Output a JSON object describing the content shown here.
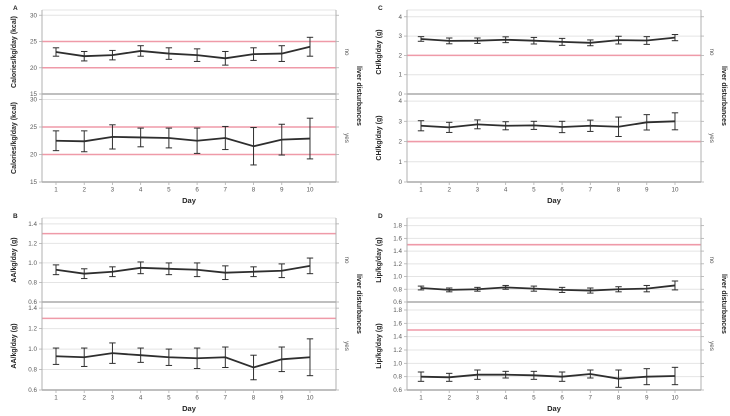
{
  "style": {
    "background": "#ffffff",
    "series_color": "#2e2e2e",
    "reference_line_color": "#ef9aa8",
    "gridline_color": "#e4e4e4",
    "frame_color": "#7f7f7f",
    "axis_color": "#b0b0b0",
    "tick_text_color": "#595959",
    "label_text_color": "#262626"
  },
  "chart_data": {
    "type": "line",
    "x": [
      1,
      2,
      3,
      4,
      5,
      6,
      7,
      8,
      9,
      10
    ],
    "xlabel": "Day",
    "right_axis_label": "liver disturbances",
    "group_labels": [
      "no",
      "yes"
    ],
    "panels": [
      {
        "letter": "A",
        "ylabel": "Calories/kg/day (kcal)",
        "ylim": [
          15,
          31
        ],
        "yticks": [
          15,
          20,
          25,
          30
        ],
        "ytick_labels": [
          "15",
          "20",
          "25",
          "30"
        ],
        "ref_lines": [
          20,
          25
        ],
        "series": [
          {
            "group": "no",
            "values": [
              23.0,
              22.2,
              22.4,
              23.2,
              22.7,
              22.4,
              21.8,
              22.6,
              22.7,
              24.0
            ],
            "errors": [
              0.8,
              0.9,
              0.9,
              1.0,
              1.1,
              1.2,
              1.3,
              1.2,
              1.5,
              1.8
            ]
          },
          {
            "group": "yes",
            "values": [
              22.5,
              22.4,
              23.2,
              23.1,
              23.0,
              22.5,
              23.0,
              21.5,
              22.7,
              22.9
            ],
            "errors": [
              1.8,
              1.9,
              2.2,
              1.7,
              1.8,
              2.3,
              2.1,
              3.4,
              2.8,
              3.7
            ]
          }
        ]
      },
      {
        "letter": "C",
        "ylabel": "CH/kg/day (g)",
        "ylim": [
          0,
          4.35
        ],
        "yticks": [
          0,
          1,
          2,
          3,
          4
        ],
        "ytick_labels": [
          "0",
          "1",
          "2",
          "3",
          "4"
        ],
        "ref_lines": [
          2
        ],
        "series": [
          {
            "group": "no",
            "values": [
              2.85,
              2.75,
              2.76,
              2.81,
              2.76,
              2.7,
              2.65,
              2.79,
              2.77,
              2.92
            ],
            "errors": [
              0.12,
              0.15,
              0.14,
              0.15,
              0.17,
              0.18,
              0.15,
              0.2,
              0.2,
              0.16
            ]
          },
          {
            "group": "yes",
            "values": [
              2.78,
              2.7,
              2.85,
              2.78,
              2.8,
              2.72,
              2.78,
              2.73,
              2.95,
              3.0
            ],
            "errors": [
              0.25,
              0.25,
              0.22,
              0.2,
              0.2,
              0.28,
              0.28,
              0.48,
              0.38,
              0.42
            ]
          }
        ]
      },
      {
        "letter": "B",
        "ylabel": "AA/kg/day (g)",
        "ylim": [
          0.6,
          1.46
        ],
        "yticks": [
          0.6,
          0.8,
          1.0,
          1.2,
          1.4
        ],
        "ytick_labels": [
          "0.6",
          "0.8",
          "1.0",
          "1.2",
          "1.4"
        ],
        "ref_lines": [
          1.3
        ],
        "series": [
          {
            "group": "no",
            "values": [
              0.93,
              0.89,
              0.91,
              0.95,
              0.94,
              0.93,
              0.9,
              0.91,
              0.92,
              0.97
            ],
            "errors": [
              0.05,
              0.05,
              0.05,
              0.06,
              0.06,
              0.07,
              0.07,
              0.05,
              0.07,
              0.08
            ]
          },
          {
            "group": "yes",
            "values": [
              0.93,
              0.92,
              0.96,
              0.94,
              0.92,
              0.91,
              0.92,
              0.82,
              0.9,
              0.92
            ],
            "errors": [
              0.08,
              0.09,
              0.1,
              0.07,
              0.08,
              0.1,
              0.1,
              0.12,
              0.12,
              0.18
            ]
          }
        ]
      },
      {
        "letter": "D",
        "ylabel": "Lip/kg/day (g)",
        "ylim": [
          0.6,
          1.92
        ],
        "yticks": [
          0.6,
          0.8,
          1.0,
          1.2,
          1.4,
          1.6,
          1.8
        ],
        "ytick_labels": [
          "0.6",
          "0.8",
          "1.0",
          "1.2",
          "1.4",
          "1.6",
          "1.8"
        ],
        "ref_lines": [
          1.5
        ],
        "series": [
          {
            "group": "no",
            "values": [
              0.82,
              0.79,
              0.8,
              0.83,
              0.81,
              0.79,
              0.78,
              0.8,
              0.81,
              0.86
            ],
            "errors": [
              0.03,
              0.03,
              0.03,
              0.03,
              0.04,
              0.04,
              0.04,
              0.04,
              0.05,
              0.07
            ]
          },
          {
            "group": "yes",
            "values": [
              0.8,
              0.79,
              0.83,
              0.83,
              0.82,
              0.8,
              0.84,
              0.77,
              0.8,
              0.81
            ],
            "errors": [
              0.07,
              0.06,
              0.07,
              0.05,
              0.06,
              0.07,
              0.06,
              0.13,
              0.12,
              0.13
            ]
          }
        ]
      }
    ]
  }
}
